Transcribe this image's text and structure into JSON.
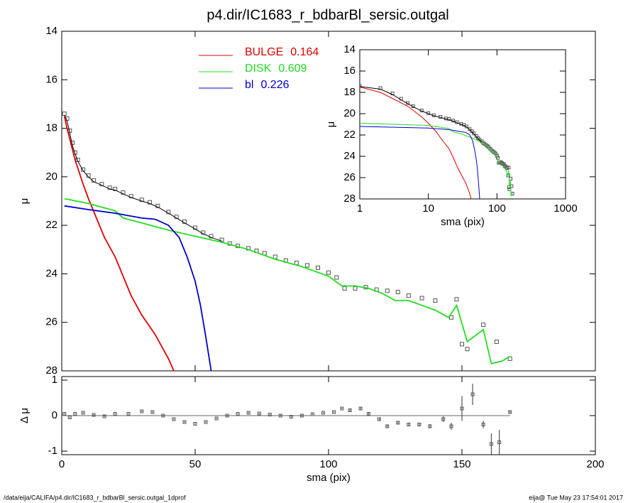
{
  "chart_data": [
    {
      "type": "line",
      "title": "p4.dir/IC1683_r_bdbarBl_sersic.outgal",
      "ylabel": "μ",
      "xlim": [
        0,
        200
      ],
      "ylim": [
        28,
        14
      ],
      "yticks": [
        14,
        16,
        18,
        20,
        22,
        24,
        26,
        28
      ],
      "series": [
        {
          "marker": "square",
          "color": "#555555",
          "x": [
            1,
            2,
            3,
            4,
            5,
            6,
            8,
            10,
            12,
            15,
            18,
            20,
            23,
            26,
            30,
            33,
            36,
            40,
            43,
            46,
            50,
            53,
            56,
            60,
            63,
            66,
            70,
            73,
            76,
            80,
            84,
            88,
            92,
            96,
            100,
            103,
            106,
            110,
            114,
            118,
            122,
            126,
            130,
            135,
            140,
            146,
            148,
            150,
            152,
            158,
            163,
            168
          ],
          "values": [
            17.4,
            17.6,
            18.1,
            18.6,
            19.0,
            19.3,
            19.7,
            19.95,
            20.15,
            20.3,
            20.45,
            20.5,
            20.65,
            20.8,
            20.95,
            21.05,
            21.2,
            21.45,
            21.65,
            21.85,
            22.1,
            22.3,
            22.45,
            22.6,
            22.75,
            22.85,
            22.95,
            23.05,
            23.15,
            23.3,
            23.45,
            23.55,
            23.65,
            23.75,
            23.95,
            24.15,
            24.6,
            24.6,
            24.55,
            24.65,
            24.7,
            24.75,
            24.9,
            25.0,
            25.1,
            25.8,
            25.05,
            26.9,
            27.1,
            26.1,
            26.8,
            27.5
          ]
        },
        {
          "color": "#000000",
          "x": [
            1,
            2,
            3,
            4,
            5,
            6,
            8,
            10,
            12,
            15,
            18,
            20,
            23,
            26,
            30,
            33,
            36,
            40,
            43,
            46,
            50,
            53,
            56,
            60
          ],
          "values": [
            17.45,
            17.7,
            18.2,
            18.7,
            19.05,
            19.35,
            19.75,
            20.0,
            20.2,
            20.35,
            20.5,
            20.55,
            20.7,
            20.85,
            21.0,
            21.1,
            21.25,
            21.5,
            21.7,
            21.9,
            22.15,
            22.35,
            22.5,
            22.65
          ]
        },
        {
          "name": "BULGE",
          "fraction": 0.164,
          "color": "#e00000",
          "x": [
            1,
            2,
            5,
            8,
            10,
            13,
            16,
            20,
            23,
            26,
            30,
            35,
            40,
            42
          ],
          "values": [
            17.5,
            18.0,
            19.3,
            20.3,
            20.9,
            21.7,
            22.5,
            23.3,
            24.1,
            24.9,
            25.7,
            26.5,
            27.5,
            28.0
          ]
        },
        {
          "name": "DISK",
          "fraction": 0.609,
          "color": "#22dd22",
          "x": [
            1,
            10,
            20,
            23,
            30,
            40,
            50,
            60,
            70,
            80,
            90,
            100,
            105,
            110,
            115,
            120,
            125,
            130,
            135,
            140,
            145,
            148,
            152,
            158,
            161,
            165,
            168
          ],
          "values": [
            20.9,
            21.1,
            21.4,
            21.7,
            21.9,
            22.2,
            22.45,
            22.7,
            23.0,
            23.4,
            23.7,
            24.1,
            24.5,
            24.5,
            24.6,
            24.8,
            25.1,
            25.1,
            25.3,
            25.5,
            25.8,
            25.3,
            26.8,
            26.3,
            27.7,
            27.6,
            27.4
          ]
        },
        {
          "name": "bl",
          "fraction": 0.226,
          "color": "#0000cc",
          "x": [
            1,
            10,
            20,
            25,
            30,
            35,
            40,
            44,
            47,
            50,
            52,
            54,
            56
          ],
          "values": [
            21.2,
            21.35,
            21.5,
            21.6,
            21.7,
            21.75,
            22.0,
            22.5,
            23.3,
            24.3,
            25.3,
            26.6,
            28.0
          ]
        }
      ]
    },
    {
      "type": "errorbar",
      "xlabel": "sma (pix)",
      "ylabel": "Δ μ",
      "xlim": [
        0,
        200
      ],
      "xticks": [
        0,
        50,
        100,
        150,
        200
      ],
      "ylim": [
        -1.1,
        1.1
      ],
      "yticks": [
        -1,
        0,
        1
      ],
      "x": [
        1,
        3,
        5,
        8,
        12,
        16,
        20,
        25,
        30,
        34,
        38,
        42,
        46,
        50,
        54,
        58,
        62,
        66,
        70,
        74,
        78,
        82,
        86,
        90,
        94,
        98,
        102,
        105,
        108,
        112,
        115,
        119,
        122,
        126,
        130,
        134,
        138,
        143,
        146,
        150,
        154,
        158,
        161,
        164,
        168
      ],
      "values": [
        0.05,
        -0.05,
        0.05,
        0.08,
        0.02,
        -0.02,
        0.05,
        0.05,
        0.12,
        0.1,
        0.0,
        -0.1,
        -0.18,
        -0.23,
        -0.18,
        -0.08,
        0.0,
        0.05,
        0.08,
        0.06,
        0.03,
        0.0,
        -0.03,
        0.0,
        0.04,
        0.08,
        0.1,
        0.2,
        0.15,
        0.2,
        0.05,
        -0.1,
        -0.3,
        -0.2,
        -0.25,
        -0.25,
        -0.3,
        -0.1,
        -0.3,
        0.2,
        0.6,
        -0.25,
        -0.8,
        -0.75,
        0.1
      ],
      "errors": [
        0.02,
        0.02,
        0.02,
        0.02,
        0.02,
        0.02,
        0.02,
        0.02,
        0.02,
        0.02,
        0.02,
        0.02,
        0.02,
        0.02,
        0.02,
        0.02,
        0.02,
        0.02,
        0.02,
        0.02,
        0.02,
        0.02,
        0.02,
        0.02,
        0.02,
        0.02,
        0.02,
        0.02,
        0.03,
        0.03,
        0.03,
        0.04,
        0.04,
        0.05,
        0.05,
        0.05,
        0.06,
        0.08,
        0.1,
        0.35,
        0.3,
        0.1,
        0.3,
        0.35,
        0.03
      ]
    },
    {
      "type": "line",
      "xlabel": "sma (pix)",
      "ylabel": "μ",
      "xlog": true,
      "xlim": [
        1,
        1000
      ],
      "xticks": [
        1,
        10,
        100,
        1000
      ],
      "ylim": [
        28,
        14
      ],
      "yticks": [
        14,
        16,
        18,
        20,
        22,
        24,
        26,
        28
      ]
    }
  ],
  "footer": {
    "left": "/data/eija/CALIFA/p4.dir/IC1683_r_bdbarBl_sersic.outgal_1dprof",
    "right": "eija@  Tue May 23 17:54:01 2017"
  }
}
